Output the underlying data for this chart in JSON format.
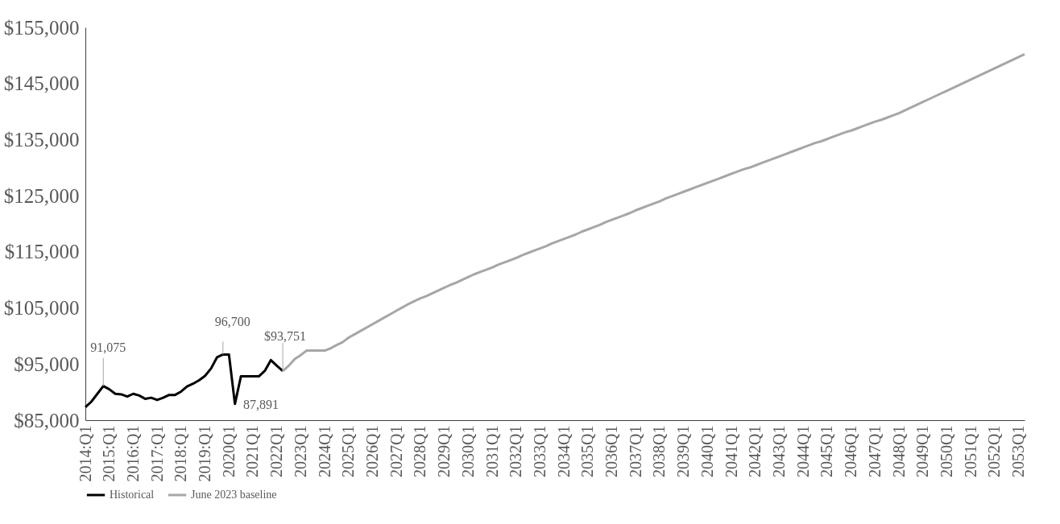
{
  "chart_data": {
    "type": "line",
    "categories": [
      "2014:Q1",
      null,
      null,
      null,
      "2015:Q1",
      null,
      null,
      null,
      "2016:Q1",
      null,
      null,
      null,
      "2017:Q1",
      null,
      null,
      null,
      "2018:Q1",
      null,
      null,
      null,
      "2019:Q1",
      null,
      null,
      null,
      "2020Q1",
      null,
      null,
      null,
      "2021Q1",
      null,
      null,
      null,
      "2022Q1",
      null,
      null,
      null,
      "2023Q1",
      null,
      null,
      null,
      "2024Q1",
      null,
      null,
      null,
      "2025Q1",
      null,
      null,
      null,
      "2026Q1",
      null,
      null,
      null,
      "2027Q1",
      null,
      null,
      null,
      "2028Q1",
      null,
      null,
      null,
      "2029Q1",
      null,
      null,
      null,
      "2030Q1",
      null,
      null,
      null,
      "2031Q1",
      null,
      null,
      null,
      "2032Q1",
      null,
      null,
      null,
      "2033Q1",
      null,
      null,
      null,
      "2034Q1",
      null,
      null,
      null,
      "2035Q1",
      null,
      null,
      null,
      "2036Q1",
      null,
      null,
      null,
      "2037Q1",
      null,
      null,
      null,
      "2038Q1",
      null,
      null,
      null,
      "2039Q1",
      null,
      null,
      null,
      "2040Q1",
      null,
      null,
      null,
      "2041Q1",
      null,
      null,
      null,
      "2042Q1",
      null,
      null,
      null,
      "2043Q1",
      null,
      null,
      null,
      "2044Q1",
      null,
      null,
      null,
      "2045Q1",
      null,
      null,
      null,
      "2046Q1",
      null,
      null,
      null,
      "2047Q1",
      null,
      null,
      null,
      "2048Q1",
      null,
      null,
      null,
      "2049Q1",
      null,
      null,
      null,
      "2050Q1",
      null,
      null,
      null,
      "2051Q1",
      null,
      null,
      null,
      "2052Q1",
      null,
      null,
      null,
      "2053Q1",
      null
    ],
    "series": [
      {
        "name": "Historical",
        "color": "#000000",
        "values": [
          87300,
          88300,
          89700,
          91075,
          90500,
          89700,
          89600,
          89200,
          89700,
          89400,
          88800,
          89000,
          88600,
          89000,
          89500,
          89500,
          90100,
          91000,
          91500,
          92100,
          92900,
          94200,
          96200,
          96700,
          96700,
          87891,
          92800,
          92800,
          92800,
          92800,
          93800,
          95700,
          94700,
          93751,
          null,
          null,
          null,
          null,
          null,
          null,
          null,
          null,
          null,
          null,
          null,
          null,
          null,
          null,
          null,
          null,
          null,
          null,
          null,
          null,
          null,
          null,
          null,
          null,
          null,
          null,
          null,
          null,
          null,
          null,
          null,
          null,
          null,
          null,
          null,
          null,
          null,
          null,
          null,
          null,
          null,
          null,
          null,
          null,
          null,
          null,
          null,
          null,
          null,
          null,
          null,
          null,
          null,
          null,
          null,
          null,
          null,
          null,
          null,
          null,
          null,
          null,
          null,
          null,
          null,
          null,
          null,
          null,
          null,
          null,
          null,
          null,
          null,
          null,
          null,
          null,
          null,
          null,
          null,
          null,
          null,
          null,
          null,
          null,
          null,
          null,
          null,
          null,
          null,
          null,
          null,
          null,
          null,
          null,
          null,
          null,
          null,
          null,
          null,
          null,
          null,
          null,
          null,
          null,
          null,
          null,
          null,
          null,
          null,
          null,
          null,
          null,
          null,
          null,
          null,
          null,
          null,
          null,
          null,
          null,
          null,
          null,
          null,
          null
        ]
      },
      {
        "name": "June 2023 baseline",
        "color": "#a6a6a6",
        "values": [
          null,
          null,
          null,
          null,
          null,
          null,
          null,
          null,
          null,
          null,
          null,
          null,
          null,
          null,
          null,
          null,
          null,
          null,
          null,
          null,
          null,
          null,
          null,
          null,
          null,
          null,
          null,
          null,
          null,
          null,
          null,
          null,
          null,
          93751,
          94700,
          95900,
          96600,
          97400,
          97400,
          97400,
          97400,
          97800,
          98400,
          98900,
          99700,
          100300,
          100900,
          101500,
          102100,
          102700,
          103300,
          103900,
          104500,
          105100,
          105700,
          106200,
          106700,
          107100,
          107600,
          108100,
          108600,
          109100,
          109500,
          110000,
          110500,
          111000,
          111400,
          111800,
          112200,
          112700,
          113100,
          113500,
          113900,
          114400,
          114800,
          115200,
          115600,
          116000,
          116500,
          116900,
          117300,
          117700,
          118100,
          118600,
          119000,
          119400,
          119800,
          120300,
          120700,
          121100,
          121500,
          121900,
          122400,
          122800,
          123200,
          123600,
          124000,
          124500,
          124900,
          125300,
          125700,
          126100,
          126500,
          126900,
          127300,
          127700,
          128100,
          128500,
          128900,
          129300,
          129700,
          130000,
          130400,
          130800,
          131200,
          131600,
          132000,
          132400,
          132800,
          133200,
          133600,
          134000,
          134400,
          134700,
          135100,
          135500,
          135900,
          136300,
          136600,
          137000,
          137400,
          137800,
          138200,
          138500,
          138900,
          139300,
          139700,
          140200,
          140700,
          141200,
          141700,
          142200,
          142700,
          143200,
          143700,
          144200,
          144700,
          145200,
          145700,
          146200,
          146700,
          147200,
          147700,
          148200,
          148700,
          149200,
          149700,
          150200
        ]
      }
    ],
    "ylim": [
      85000,
      155000
    ],
    "yticks": [
      {
        "value": 85000,
        "label": "$85,000"
      },
      {
        "value": 95000,
        "label": "$95,000"
      },
      {
        "value": 105000,
        "label": "$105,000"
      },
      {
        "value": 115000,
        "label": "$115,000"
      },
      {
        "value": 125000,
        "label": "$125,000"
      },
      {
        "value": 135000,
        "label": "$135,000"
      },
      {
        "value": 145000,
        "label": "$145,000"
      },
      {
        "value": 155000,
        "label": "$155,000"
      }
    ],
    "annotations": [
      {
        "text": "91,075",
        "y": 91075
      },
      {
        "text": "96,700",
        "y": 96700
      },
      "87,891",
      {
        "text": "$93,751",
        "y": 93751
      }
    ],
    "grid": false,
    "legend": "bottom",
    "marker": "none",
    "line_style": "solid"
  }
}
